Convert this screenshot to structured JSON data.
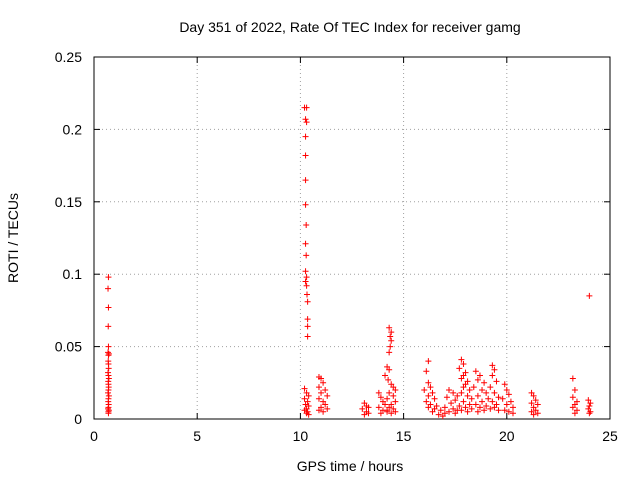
{
  "chart_data": {
    "type": "scatter",
    "title": "Day 351 of 2022, Rate Of TEC Index for receiver gamg",
    "xlabel": "GPS time / hours",
    "ylabel": "ROTI / TECUs",
    "xlim": [
      0,
      25
    ],
    "ylim": [
      0,
      0.25
    ],
    "x_ticks": [
      0,
      5,
      10,
      15,
      20,
      25
    ],
    "x_tick_labels": [
      "0",
      "5",
      "10",
      "15",
      "20",
      "25"
    ],
    "y_ticks": [
      0,
      0.05,
      0.1,
      0.15,
      0.2,
      0.25
    ],
    "y_tick_labels": [
      "0",
      "0.05",
      "0.1",
      "0.15",
      "0.2",
      "0.25"
    ],
    "grid": true,
    "marker": "+",
    "marker_color": "#ff0000",
    "series": [
      {
        "name": "ROTI",
        "points": [
          [
            0.7,
            0.098
          ],
          [
            0.68,
            0.09
          ],
          [
            0.7,
            0.077
          ],
          [
            0.69,
            0.064
          ],
          [
            0.7,
            0.05
          ],
          [
            0.68,
            0.046
          ],
          [
            0.72,
            0.045
          ],
          [
            0.7,
            0.044
          ],
          [
            0.69,
            0.04
          ],
          [
            0.7,
            0.038
          ],
          [
            0.71,
            0.035
          ],
          [
            0.68,
            0.032
          ],
          [
            0.7,
            0.03
          ],
          [
            0.72,
            0.028
          ],
          [
            0.69,
            0.026
          ],
          [
            0.7,
            0.024
          ],
          [
            0.71,
            0.022
          ],
          [
            0.7,
            0.02
          ],
          [
            0.68,
            0.018
          ],
          [
            0.72,
            0.016
          ],
          [
            0.7,
            0.014
          ],
          [
            0.69,
            0.012
          ],
          [
            0.71,
            0.01
          ],
          [
            0.7,
            0.008
          ],
          [
            0.68,
            0.007
          ],
          [
            0.72,
            0.006
          ],
          [
            0.7,
            0.005
          ],
          [
            0.7,
            0.004
          ],
          [
            10.2,
            0.215
          ],
          [
            10.3,
            0.215
          ],
          [
            10.25,
            0.207
          ],
          [
            10.3,
            0.205
          ],
          [
            10.25,
            0.195
          ],
          [
            10.25,
            0.182
          ],
          [
            10.25,
            0.165
          ],
          [
            10.25,
            0.148
          ],
          [
            10.28,
            0.134
          ],
          [
            10.25,
            0.121
          ],
          [
            10.28,
            0.113
          ],
          [
            10.25,
            0.102
          ],
          [
            10.3,
            0.098
          ],
          [
            10.25,
            0.095
          ],
          [
            10.3,
            0.092
          ],
          [
            10.32,
            0.086
          ],
          [
            10.35,
            0.081
          ],
          [
            10.35,
            0.069
          ],
          [
            10.35,
            0.064
          ],
          [
            10.35,
            0.057
          ],
          [
            10.2,
            0.021
          ],
          [
            10.3,
            0.018
          ],
          [
            10.4,
            0.016
          ],
          [
            10.2,
            0.014
          ],
          [
            10.35,
            0.012
          ],
          [
            10.25,
            0.01
          ],
          [
            10.4,
            0.009
          ],
          [
            10.3,
            0.007
          ],
          [
            10.2,
            0.006
          ],
          [
            10.35,
            0.005
          ],
          [
            10.3,
            0.004
          ],
          [
            10.4,
            0.003
          ],
          [
            10.9,
            0.029
          ],
          [
            11.0,
            0.028
          ],
          [
            11.1,
            0.025
          ],
          [
            10.9,
            0.022
          ],
          [
            11.2,
            0.02
          ],
          [
            11.0,
            0.018
          ],
          [
            11.3,
            0.016
          ],
          [
            10.9,
            0.014
          ],
          [
            11.1,
            0.012
          ],
          [
            11.2,
            0.01
          ],
          [
            11.0,
            0.008
          ],
          [
            11.3,
            0.007
          ],
          [
            10.9,
            0.006
          ],
          [
            11.1,
            0.005
          ],
          [
            13.1,
            0.011
          ],
          [
            13.2,
            0.009
          ],
          [
            13.3,
            0.008
          ],
          [
            13.0,
            0.007
          ],
          [
            13.2,
            0.005
          ],
          [
            13.3,
            0.004
          ],
          [
            13.1,
            0.003
          ],
          [
            13.8,
            0.018
          ],
          [
            13.9,
            0.015
          ],
          [
            14.0,
            0.012
          ],
          [
            14.1,
            0.01
          ],
          [
            13.8,
            0.008
          ],
          [
            14.0,
            0.006
          ],
          [
            14.2,
            0.005
          ],
          [
            13.9,
            0.004
          ],
          [
            14.3,
            0.063
          ],
          [
            14.4,
            0.06
          ],
          [
            14.35,
            0.057
          ],
          [
            14.4,
            0.054
          ],
          [
            14.35,
            0.05
          ],
          [
            14.3,
            0.046
          ],
          [
            14.2,
            0.036
          ],
          [
            14.3,
            0.034
          ],
          [
            14.1,
            0.03
          ],
          [
            14.25,
            0.027
          ],
          [
            14.4,
            0.024
          ],
          [
            14.5,
            0.022
          ],
          [
            14.6,
            0.02
          ],
          [
            14.3,
            0.018
          ],
          [
            14.5,
            0.016
          ],
          [
            14.2,
            0.014
          ],
          [
            14.6,
            0.012
          ],
          [
            14.4,
            0.01
          ],
          [
            14.3,
            0.008
          ],
          [
            14.5,
            0.007
          ],
          [
            14.2,
            0.006
          ],
          [
            14.6,
            0.005
          ],
          [
            14.4,
            0.004
          ],
          [
            16.2,
            0.04
          ],
          [
            16.1,
            0.033
          ],
          [
            16.2,
            0.025
          ],
          [
            16.3,
            0.022
          ],
          [
            16.0,
            0.02
          ],
          [
            16.4,
            0.018
          ],
          [
            16.2,
            0.016
          ],
          [
            16.5,
            0.014
          ],
          [
            16.1,
            0.012
          ],
          [
            16.3,
            0.01
          ],
          [
            16.6,
            0.009
          ],
          [
            16.2,
            0.008
          ],
          [
            16.5,
            0.007
          ],
          [
            16.8,
            0.006
          ],
          [
            16.4,
            0.005
          ],
          [
            17.0,
            0.004
          ],
          [
            16.7,
            0.003
          ],
          [
            16.9,
            0.002
          ],
          [
            17.2,
            0.02
          ],
          [
            17.4,
            0.018
          ],
          [
            17.6,
            0.016
          ],
          [
            17.1,
            0.015
          ],
          [
            17.5,
            0.013
          ],
          [
            17.3,
            0.011
          ],
          [
            17.7,
            0.009
          ],
          [
            17.0,
            0.008
          ],
          [
            17.4,
            0.007
          ],
          [
            17.6,
            0.006
          ],
          [
            17.2,
            0.005
          ],
          [
            17.5,
            0.004
          ],
          [
            17.8,
            0.041
          ],
          [
            17.9,
            0.038
          ],
          [
            17.7,
            0.035
          ],
          [
            18.0,
            0.032
          ],
          [
            17.9,
            0.03
          ],
          [
            17.8,
            0.028
          ],
          [
            18.1,
            0.026
          ],
          [
            18.0,
            0.024
          ],
          [
            17.9,
            0.022
          ],
          [
            18.2,
            0.02
          ],
          [
            17.8,
            0.018
          ],
          [
            18.1,
            0.016
          ],
          [
            18.3,
            0.014
          ],
          [
            17.9,
            0.012
          ],
          [
            18.2,
            0.01
          ],
          [
            18.0,
            0.008
          ],
          [
            18.3,
            0.007
          ],
          [
            17.8,
            0.006
          ],
          [
            18.1,
            0.005
          ],
          [
            18.5,
            0.033
          ],
          [
            18.7,
            0.03
          ],
          [
            18.6,
            0.027
          ],
          [
            18.9,
            0.025
          ],
          [
            18.4,
            0.022
          ],
          [
            18.8,
            0.02
          ],
          [
            19.0,
            0.018
          ],
          [
            18.6,
            0.016
          ],
          [
            19.1,
            0.014
          ],
          [
            18.8,
            0.012
          ],
          [
            18.5,
            0.01
          ],
          [
            19.0,
            0.009
          ],
          [
            18.7,
            0.008
          ],
          [
            19.2,
            0.007
          ],
          [
            18.9,
            0.006
          ],
          [
            18.6,
            0.005
          ],
          [
            19.3,
            0.037
          ],
          [
            19.4,
            0.034
          ],
          [
            19.3,
            0.03
          ],
          [
            19.5,
            0.026
          ],
          [
            19.2,
            0.022
          ],
          [
            19.4,
            0.018
          ],
          [
            19.6,
            0.015
          ],
          [
            19.3,
            0.012
          ],
          [
            19.5,
            0.01
          ],
          [
            19.4,
            0.008
          ],
          [
            19.6,
            0.006
          ],
          [
            19.9,
            0.024
          ],
          [
            20.0,
            0.02
          ],
          [
            20.1,
            0.017
          ],
          [
            19.8,
            0.014
          ],
          [
            20.2,
            0.012
          ],
          [
            20.0,
            0.01
          ],
          [
            20.3,
            0.008
          ],
          [
            19.9,
            0.006
          ],
          [
            20.1,
            0.005
          ],
          [
            20.3,
            0.004
          ],
          [
            21.2,
            0.018
          ],
          [
            21.3,
            0.016
          ],
          [
            21.4,
            0.013
          ],
          [
            21.2,
            0.011
          ],
          [
            21.5,
            0.01
          ],
          [
            21.3,
            0.008
          ],
          [
            21.4,
            0.006
          ],
          [
            21.2,
            0.005
          ],
          [
            21.5,
            0.004
          ],
          [
            21.3,
            0.003
          ],
          [
            23.2,
            0.028
          ],
          [
            23.3,
            0.02
          ],
          [
            23.2,
            0.015
          ],
          [
            23.4,
            0.012
          ],
          [
            23.3,
            0.01
          ],
          [
            23.2,
            0.008
          ],
          [
            23.4,
            0.006
          ],
          [
            23.3,
            0.004
          ],
          [
            24.0,
            0.085
          ],
          [
            23.95,
            0.013
          ],
          [
            24.05,
            0.011
          ],
          [
            24.0,
            0.009
          ],
          [
            23.95,
            0.007
          ],
          [
            24.05,
            0.005
          ],
          [
            24.0,
            0.004
          ]
        ]
      }
    ]
  }
}
